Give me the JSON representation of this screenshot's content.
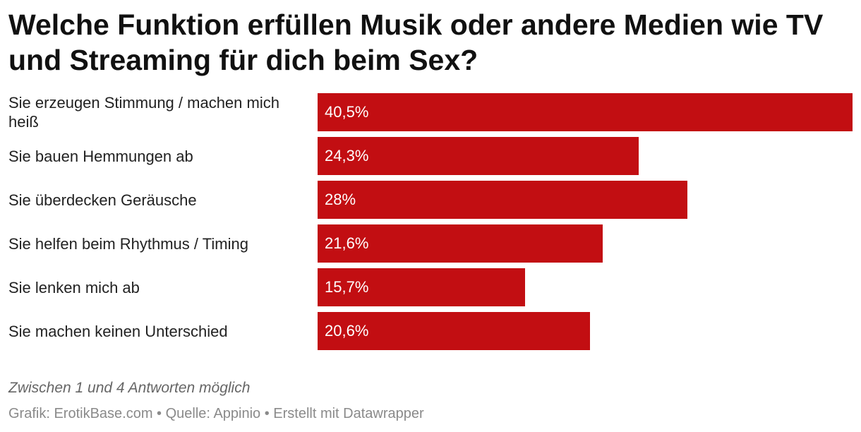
{
  "chart_data": {
    "type": "bar",
    "orientation": "horizontal",
    "title": "Welche Funktion erfüllen Musik oder andere Medien wie TV und Streaming für dich beim Sex?",
    "categories": [
      "Sie erzeugen Stimmung / machen mich heiß",
      "Sie bauen Hemmungen ab",
      "Sie überdecken Geräusche",
      "Sie helfen beim Rhythmus / Timing",
      "Sie lenken mich ab",
      "Sie machen keinen Unterschied"
    ],
    "values": [
      40.5,
      24.3,
      28,
      21.6,
      15.7,
      20.6
    ],
    "value_labels": [
      "40,5%",
      "24,3%",
      "28%",
      "21,6%",
      "15,7%",
      "20,6%"
    ],
    "unit": "%",
    "xlim": [
      0,
      40.5
    ],
    "bar_color": "#c20e12",
    "grid": false,
    "legend": "none",
    "note": "Zwischen 1 und 4 Antworten möglich",
    "footer": "Grafik: ErotikBase.com • Quelle: Appinio • Erstellt mit Datawrapper"
  }
}
